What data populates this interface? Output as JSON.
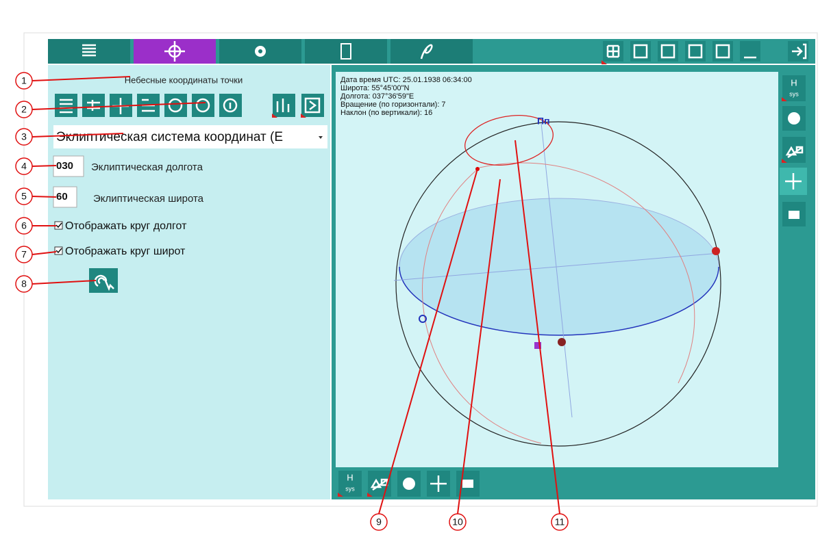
{
  "panel": {
    "title": "Небесные координаты точки",
    "coordinate_system": "Эклиптическая система координат (E",
    "longitude": {
      "value": "030",
      "label": "Эклиптическая долгота"
    },
    "latitude": {
      "value": "60",
      "label": "Эклиптическая широта"
    },
    "checkboxes": [
      "Отображать круг долгот",
      "Отображать круг широт"
    ]
  },
  "view": {
    "info": [
      "Дата время UTC: 25.01.1938 06:34:00",
      "Широта: 55°45'00\"N",
      "Долгота: 037°36'59\"E",
      "Вращение (по горизонтали): 7",
      "Наклон (по вертикали): 16"
    ],
    "pole_label": "Пп",
    "hsys": [
      "H",
      "sys"
    ]
  },
  "callouts": [
    "1",
    "2",
    "3",
    "4",
    "5",
    "6",
    "7",
    "8",
    "9",
    "10",
    "11"
  ]
}
